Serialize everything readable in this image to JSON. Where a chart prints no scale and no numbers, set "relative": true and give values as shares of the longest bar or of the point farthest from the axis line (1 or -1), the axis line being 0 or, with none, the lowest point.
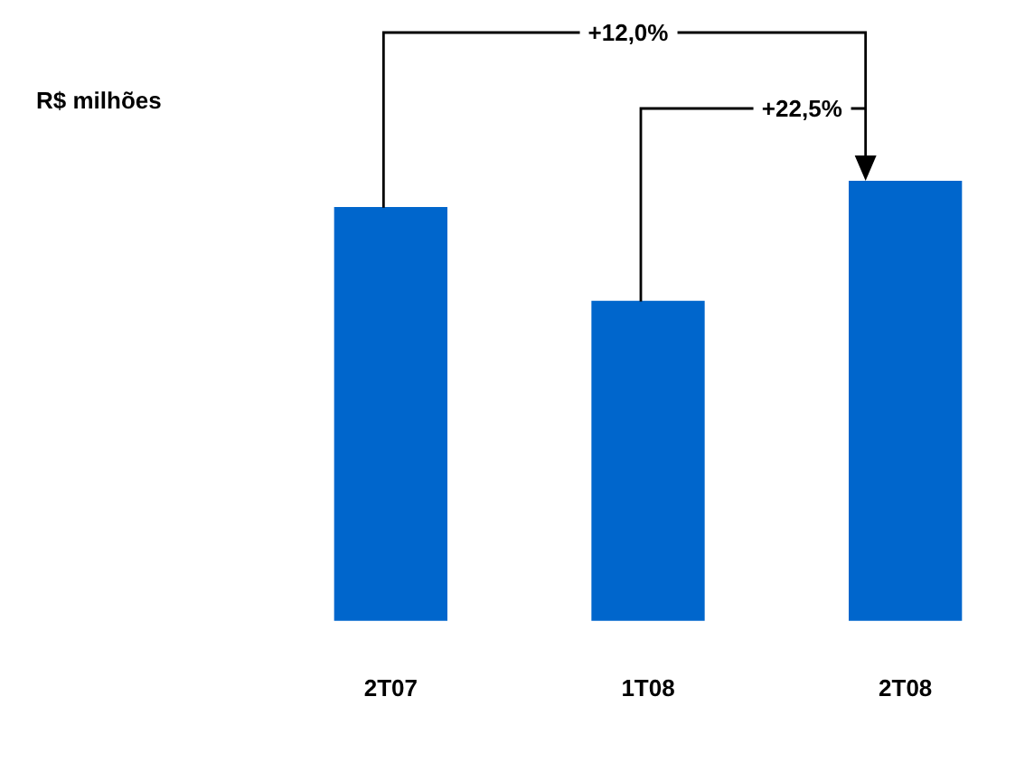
{
  "chart_data": {
    "type": "bar",
    "categories": [
      "2T07",
      "1T08",
      "2T08"
    ],
    "values": [
      0.939,
      0.726,
      1
    ],
    "color": "#0066cc",
    "relative": true,
    "grid": false,
    "legend": false,
    "annotations": [
      "R$ milhões",
      "+12,0%",
      "+22,5%"
    ]
  }
}
